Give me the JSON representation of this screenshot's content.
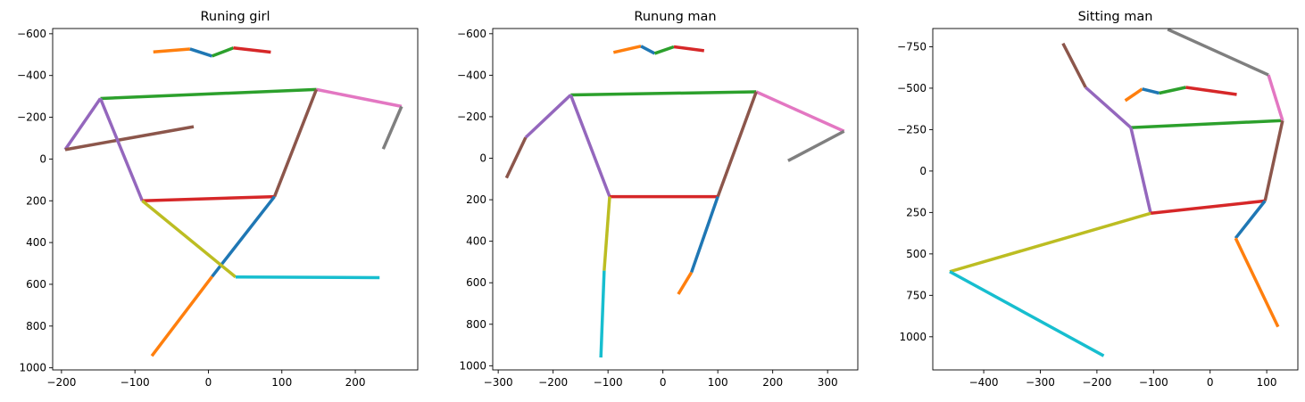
{
  "chart_data": [
    {
      "type": "line",
      "title": "Runing girl",
      "xlabel": "",
      "ylabel": "",
      "xlim": [
        -212,
        285
      ],
      "ylim": [
        1010,
        -625
      ],
      "y_inverted": true,
      "grid": false,
      "xticks": [
        -200,
        -100,
        0,
        100,
        200
      ],
      "yticks": [
        -600,
        -400,
        -200,
        0,
        200,
        400,
        600,
        800,
        1000
      ],
      "segments": [
        {
          "color": "#ff7f0e",
          "points": [
            [
              -75,
              -513
            ],
            [
              -25,
              -527
            ]
          ]
        },
        {
          "color": "#1f77b4",
          "points": [
            [
              -25,
              -527
            ],
            [
              5,
              -493
            ]
          ]
        },
        {
          "color": "#2ca02c",
          "points": [
            [
              5,
              -493
            ],
            [
              34,
              -532
            ]
          ]
        },
        {
          "color": "#d62728",
          "points": [
            [
              34,
              -532
            ],
            [
              85,
              -512
            ]
          ]
        },
        {
          "color": "#2ca02c",
          "points": [
            [
              -147,
              -290
            ],
            [
              147,
              -333
            ]
          ]
        },
        {
          "color": "#e377c2",
          "points": [
            [
              147,
              -333
            ],
            [
              263,
              -252
            ]
          ]
        },
        {
          "color": "#7f7f7f",
          "points": [
            [
              263,
              -252
            ],
            [
              238,
              -48
            ]
          ]
        },
        {
          "color": "#9467bd",
          "points": [
            [
              -147,
              -290
            ],
            [
              -195,
              -45
            ]
          ]
        },
        {
          "color": "#8c564b",
          "points": [
            [
              -195,
              -45
            ],
            [
              -20,
              -155
            ]
          ]
        },
        {
          "color": "#9467bd",
          "points": [
            [
              -147,
              -290
            ],
            [
              -90,
              200
            ]
          ]
        },
        {
          "color": "#8c564b",
          "points": [
            [
              147,
              -333
            ],
            [
              90,
              180
            ]
          ]
        },
        {
          "color": "#d62728",
          "points": [
            [
              -90,
              200
            ],
            [
              90,
              180
            ]
          ]
        },
        {
          "color": "#1f77b4",
          "points": [
            [
              90,
              180
            ],
            [
              5,
              563
            ]
          ]
        },
        {
          "color": "#ff7f0e",
          "points": [
            [
              5,
              563
            ],
            [
              -77,
              943
            ]
          ]
        },
        {
          "color": "#bcbd22",
          "points": [
            [
              -90,
              200
            ],
            [
              37,
              565
            ]
          ]
        },
        {
          "color": "#17becf",
          "points": [
            [
              37,
              565
            ],
            [
              233,
              568
            ]
          ]
        }
      ]
    },
    {
      "type": "line",
      "title": "Runung man",
      "xlabel": "",
      "ylabel": "",
      "xlim": [
        -310,
        355
      ],
      "ylim": [
        1020,
        -625
      ],
      "y_inverted": true,
      "grid": false,
      "xticks": [
        -300,
        -200,
        -100,
        0,
        100,
        200,
        300
      ],
      "yticks": [
        -600,
        -400,
        -200,
        0,
        200,
        400,
        600,
        800,
        1000
      ],
      "segments": [
        {
          "color": "#ff7f0e",
          "points": [
            [
              -90,
              -510
            ],
            [
              -40,
              -540
            ]
          ]
        },
        {
          "color": "#1f77b4",
          "points": [
            [
              -40,
              -540
            ],
            [
              -15,
              -505
            ]
          ]
        },
        {
          "color": "#2ca02c",
          "points": [
            [
              -15,
              -505
            ],
            [
              20,
              -537
            ]
          ]
        },
        {
          "color": "#d62728",
          "points": [
            [
              20,
              -537
            ],
            [
              75,
              -518
            ]
          ]
        },
        {
          "color": "#2ca02c",
          "points": [
            [
              -168,
              -305
            ],
            [
              170,
              -320
            ]
          ]
        },
        {
          "color": "#e377c2",
          "points": [
            [
              170,
              -320
            ],
            [
              330,
              -130
            ]
          ]
        },
        {
          "color": "#7f7f7f",
          "points": [
            [
              330,
              -130
            ],
            [
              228,
              12
            ]
          ]
        },
        {
          "color": "#9467bd",
          "points": [
            [
              -168,
              -305
            ],
            [
              -250,
              -100
            ]
          ]
        },
        {
          "color": "#8c564b",
          "points": [
            [
              -250,
              -100
            ],
            [
              -285,
              95
            ]
          ]
        },
        {
          "color": "#9467bd",
          "points": [
            [
              -168,
              -305
            ],
            [
              -97,
              185
            ]
          ]
        },
        {
          "color": "#8c564b",
          "points": [
            [
              170,
              -320
            ],
            [
              100,
              185
            ]
          ]
        },
        {
          "color": "#d62728",
          "points": [
            [
              -97,
              185
            ],
            [
              100,
              185
            ]
          ]
        },
        {
          "color": "#1f77b4",
          "points": [
            [
              100,
              185
            ],
            [
              52,
              550
            ]
          ]
        },
        {
          "color": "#ff7f0e",
          "points": [
            [
              52,
              550
            ],
            [
              28,
              655
            ]
          ]
        },
        {
          "color": "#bcbd22",
          "points": [
            [
              -97,
              185
            ],
            [
              -107,
              542
            ]
          ]
        },
        {
          "color": "#17becf",
          "points": [
            [
              -107,
              542
            ],
            [
              -113,
              960
            ]
          ]
        }
      ]
    },
    {
      "type": "line",
      "title": "Sitting man",
      "xlabel": "",
      "ylabel": "",
      "xlim": [
        -490,
        155
      ],
      "ylim": [
        1200,
        -860
      ],
      "y_inverted": true,
      "grid": false,
      "xticks": [
        -400,
        -300,
        -200,
        -100,
        0,
        100
      ],
      "yticks": [
        -750,
        -500,
        -250,
        0,
        250,
        500,
        750,
        1000
      ],
      "segments": [
        {
          "color": "#ff7f0e",
          "points": [
            [
              -150,
              -425
            ],
            [
              -120,
              -495
            ]
          ]
        },
        {
          "color": "#1f77b4",
          "points": [
            [
              -120,
              -495
            ],
            [
              -90,
              -470
            ]
          ]
        },
        {
          "color": "#2ca02c",
          "points": [
            [
              -90,
              -470
            ],
            [
              -43,
              -505
            ]
          ]
        },
        {
          "color": "#d62728",
          "points": [
            [
              -43,
              -505
            ],
            [
              47,
              -462
            ]
          ]
        },
        {
          "color": "#2ca02c",
          "points": [
            [
              -140,
              -262
            ],
            [
              128,
              -305
            ]
          ]
        },
        {
          "color": "#e377c2",
          "points": [
            [
              128,
              -305
            ],
            [
              103,
              -580
            ]
          ]
        },
        {
          "color": "#7f7f7f",
          "points": [
            [
              103,
              -580
            ],
            [
              -75,
              -855
            ]
          ]
        },
        {
          "color": "#9467bd",
          "points": [
            [
              -140,
              -262
            ],
            [
              -220,
              -505
            ]
          ]
        },
        {
          "color": "#8c564b",
          "points": [
            [
              -220,
              -505
            ],
            [
              -260,
              -770
            ]
          ]
        },
        {
          "color": "#9467bd",
          "points": [
            [
              -140,
              -262
            ],
            [
              -105,
              255
            ]
          ]
        },
        {
          "color": "#8c564b",
          "points": [
            [
              128,
              -305
            ],
            [
              97,
              180
            ]
          ]
        },
        {
          "color": "#d62728",
          "points": [
            [
              -105,
              255
            ],
            [
              97,
              180
            ]
          ]
        },
        {
          "color": "#1f77b4",
          "points": [
            [
              97,
              180
            ],
            [
              45,
              405
            ]
          ]
        },
        {
          "color": "#ff7f0e",
          "points": [
            [
              45,
              405
            ],
            [
              120,
              940
            ]
          ]
        },
        {
          "color": "#bcbd22",
          "points": [
            [
              -105,
              255
            ],
            [
              -460,
              607
            ]
          ]
        },
        {
          "color": "#17becf",
          "points": [
            [
              -460,
              607
            ],
            [
              -188,
              1115
            ]
          ]
        }
      ]
    }
  ]
}
